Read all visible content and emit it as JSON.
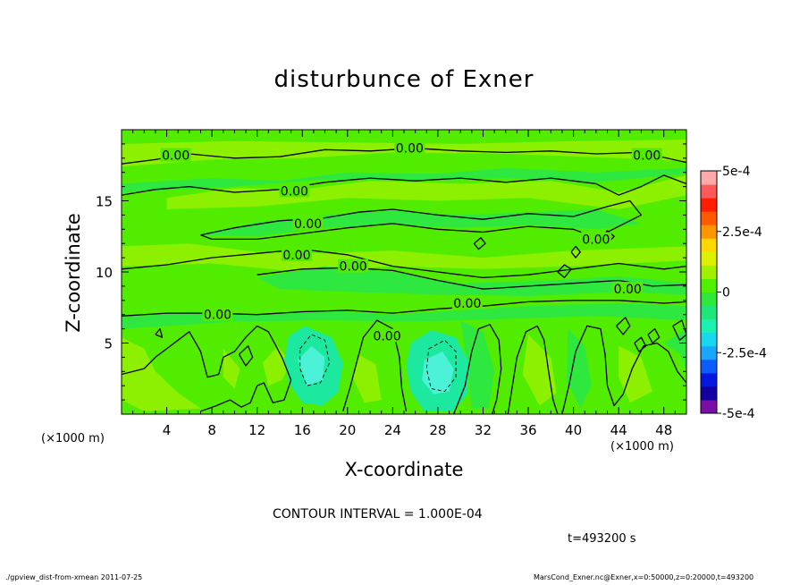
{
  "chart_data": {
    "type": "heatmap",
    "title": "disturbunce of Exner",
    "xlabel": "X-coordinate",
    "ylabel": "Z-coordinate",
    "x_unit_label": "(×1000 m)",
    "xlim": [
      0,
      50
    ],
    "ylim": [
      0,
      20
    ],
    "x_ticks": [
      4,
      8,
      12,
      16,
      20,
      24,
      28,
      32,
      36,
      40,
      44,
      48
    ],
    "y_ticks": [
      5,
      10,
      15
    ],
    "colorbar": {
      "range": [
        -0.0005,
        0.0005
      ],
      "tick_labels": [
        "5e-4",
        "2.5e-4",
        "0",
        "-2.5e-4",
        "-5e-4"
      ],
      "tick_values": [
        0.0005,
        0.00025,
        0,
        -0.00025,
        -0.0005
      ],
      "colors": [
        "#7a0fa8",
        "#1400a0",
        "#0018e0",
        "#0a5cff",
        "#1aa6ff",
        "#18d8f0",
        "#19f2b0",
        "#1ee67a",
        "#2ee83a",
        "#50f000",
        "#a0f000",
        "#dcf000",
        "#ffd800",
        "#ff9600",
        "#ff5a00",
        "#ff1e00",
        "#ff5a5a",
        "#ffaaaa"
      ]
    },
    "field_colors": {
      "zero": "#52ec00",
      "slightly_positive": "#8cf000",
      "slightly_negative": "#2ee840",
      "negative": "#1de8a0",
      "more_negative": "#4cf2d8"
    },
    "contour_label": "0.00",
    "contour_labels_at": [
      {
        "x": 4.8,
        "z": 18.2
      },
      {
        "x": 25.5,
        "z": 18.7
      },
      {
        "x": 46.5,
        "z": 18.2
      },
      {
        "x": 15.3,
        "z": 15.7
      },
      {
        "x": 16.5,
        "z": 13.4
      },
      {
        "x": 15.5,
        "z": 11.2
      },
      {
        "x": 20.5,
        "z": 10.4
      },
      {
        "x": 42.0,
        "z": 12.3
      },
      {
        "x": 44.8,
        "z": 8.8
      },
      {
        "x": 30.6,
        "z": 7.8
      },
      {
        "x": 8.5,
        "z": 7.0
      },
      {
        "x": 23.5,
        "z": 5.5
      }
    ]
  },
  "contour_note": "CONTOUR INTERVAL = 1.000E-04",
  "time_note": "t=493200 s",
  "footer": {
    "left": "./gpview_dist-from-xmean  2011-07-25",
    "right": "MarsCond_Exner.nc@Exner,x=0:50000,z=0:20000,t=493200"
  }
}
